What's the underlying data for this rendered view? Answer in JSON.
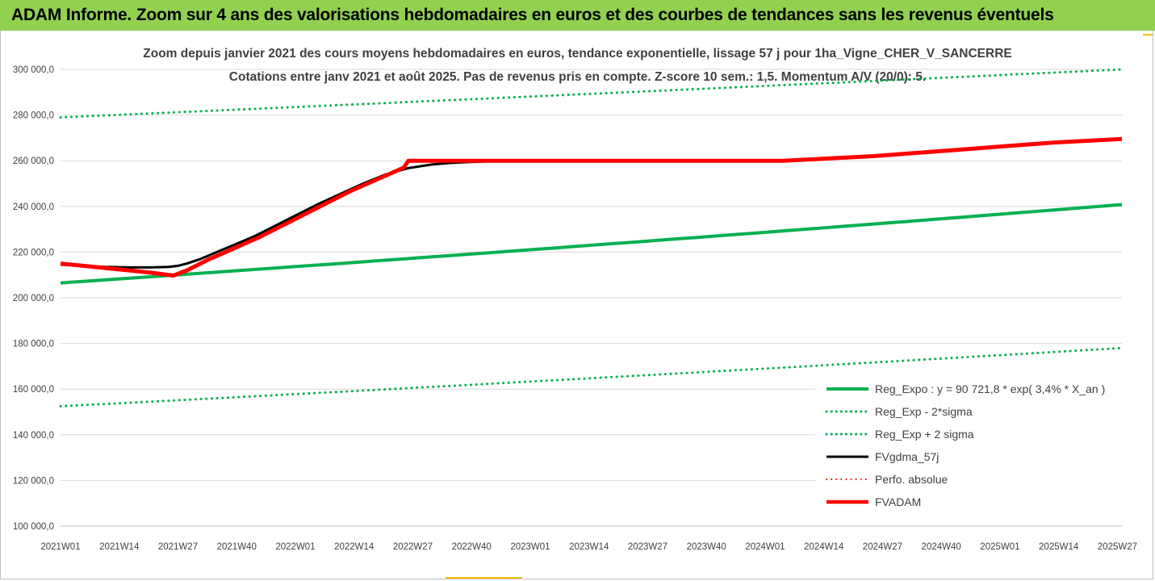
{
  "banner": "ADAM Informe. Zoom sur 4 ans des valorisations hebdomadaires en euros et des courbes de tendances sans les revenus éventuels",
  "colors": {
    "banner_bg": "#92d050",
    "green": "#00b050",
    "red": "#ff0000",
    "black": "#000000",
    "grid": "#d9d9d9",
    "text": "#404040"
  },
  "chart_data": {
    "type": "line",
    "title": "Zoom depuis janvier 2021 des cours moyens hebdomadaires en euros, tendance exponentielle, lissage 57 j pour 1ha_Vigne_CHER_V_SANCERRE",
    "subtitle": "Cotations entre janv 2021 et août 2025.  Pas de revenus pris en compte. Z-score 10 sem.: 1,5. Momentum A/V (20/0): 5.",
    "xlabel": "",
    "ylabel": "",
    "x_tick_labels": [
      "2021W01",
      "2021W14",
      "2021W27",
      "2021W40",
      "2022W01",
      "2022W14",
      "2022W27",
      "2022W40",
      "2023W01",
      "2023W14",
      "2023W27",
      "2023W40",
      "2024W01",
      "2024W14",
      "2024W27",
      "2024W40",
      "2025W01",
      "2025W14",
      "2025W27"
    ],
    "x_range": [
      0,
      235
    ],
    "ylim": [
      100000,
      300000
    ],
    "y_tick_labels": [
      "100 000,0",
      "120 000,0",
      "140 000,0",
      "160 000,0",
      "180 000,0",
      "200 000,0",
      "220 000,0",
      "240 000,0",
      "260 000,0",
      "280 000,0",
      "300 000,0"
    ],
    "y_tick_values": [
      100000,
      120000,
      140000,
      160000,
      180000,
      200000,
      220000,
      240000,
      260000,
      280000,
      300000
    ],
    "grid": "horizontal",
    "legend_position": "bottom-right",
    "series": [
      {
        "name": "Reg_Expo : y = 90 721,8 * exp( 3,4% *  X_an )",
        "style": "solid",
        "color": "#00b050",
        "width": 4,
        "x": [
          0,
          235
        ],
        "y": [
          206500,
          240800
        ]
      },
      {
        "name": "Reg_Exp - 2*sigma",
        "style": "dotted",
        "color": "#00b050",
        "width": 3,
        "x": [
          0,
          235
        ],
        "y": [
          152500,
          178000
        ]
      },
      {
        "name": "Reg_Exp + 2 sigma",
        "style": "dotted",
        "color": "#00b050",
        "width": 3,
        "x": [
          0,
          235
        ],
        "y": [
          279000,
          300000
        ]
      },
      {
        "name": "FVgdma_57j",
        "style": "solid",
        "color": "#000000",
        "width": 3,
        "x": [
          0,
          5,
          10,
          15,
          20,
          24,
          26,
          28,
          31,
          34,
          37,
          40,
          43,
          47,
          52,
          57,
          62,
          67,
          72,
          77,
          82,
          86,
          90,
          95,
          100,
          105,
          110,
          115
        ],
        "y": [
          214500,
          214000,
          213500,
          213300,
          213300,
          213500,
          214000,
          215000,
          217000,
          219500,
          222000,
          224500,
          227000,
          231000,
          236000,
          241000,
          245500,
          250000,
          254000,
          256800,
          258300,
          259000,
          259400,
          259700,
          259800,
          259900,
          260000,
          260000
        ]
      },
      {
        "name": "Perfo. absolue",
        "style": "dotted",
        "color": "#ff0000",
        "width": 2,
        "x": [],
        "y": []
      },
      {
        "name": "FVADAM",
        "style": "solid",
        "color": "#ff0000",
        "width": 5,
        "x": [
          0,
          5,
          10,
          15,
          20,
          25,
          28,
          30,
          33,
          36,
          40,
          44,
          48,
          52,
          56,
          60,
          64,
          68,
          72,
          76,
          77,
          90,
          100,
          110,
          120,
          130,
          140,
          150,
          160,
          170,
          180,
          190,
          200,
          210,
          220,
          235
        ],
        "y": [
          215000,
          214000,
          213000,
          212000,
          211000,
          209700,
          212000,
          214000,
          217000,
          219500,
          223000,
          226500,
          230500,
          234500,
          238500,
          242500,
          246500,
          250000,
          253500,
          257000,
          260000,
          260000,
          260000,
          260000,
          260000,
          260000,
          260000,
          260000,
          260000,
          261000,
          262000,
          263500,
          265000,
          266500,
          268000,
          269500
        ]
      }
    ]
  }
}
